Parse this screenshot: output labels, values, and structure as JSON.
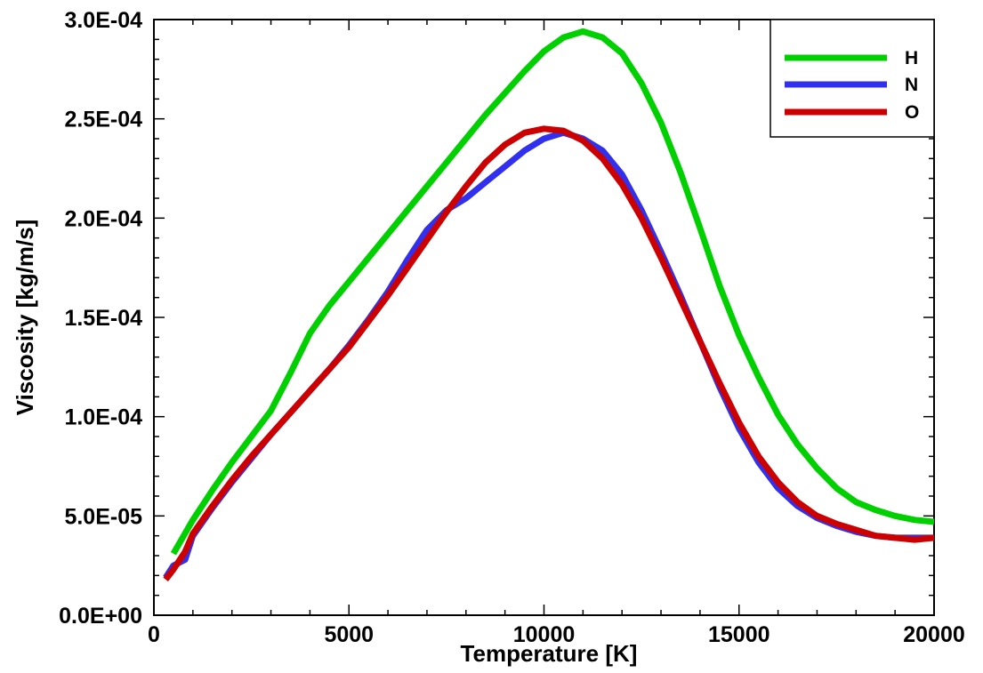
{
  "chart_data": {
    "type": "line",
    "title": "",
    "xlabel": "Temperature [K]",
    "ylabel": "Viscosity [kg/m/s]",
    "xlim": [
      0,
      20000
    ],
    "ylim": [
      0,
      0.0003
    ],
    "x_ticks": [
      0,
      5000,
      10000,
      15000,
      20000
    ],
    "x_tick_labels": [
      "0",
      "5000",
      "10000",
      "15000",
      "20000"
    ],
    "y_ticks": [
      0,
      5e-05,
      0.0001,
      0.00015,
      0.0002,
      0.00025,
      0.0003
    ],
    "y_tick_labels": [
      "0.0E+00",
      "5.0E-05",
      "1.0E-04",
      "1.5E-04",
      "2.0E-04",
      "2.5E-04",
      "3.0E-04"
    ],
    "grid": false,
    "legend_position": "top-right",
    "series": [
      {
        "name": "H",
        "color": "#00d000",
        "x": [
          500,
          1000,
          1500,
          2000,
          2500,
          3000,
          3500,
          4000,
          4500,
          5000,
          5500,
          6000,
          6500,
          7000,
          7500,
          8000,
          8500,
          9000,
          9500,
          10000,
          10500,
          11000,
          11500,
          12000,
          12500,
          13000,
          13500,
          14000,
          14500,
          15000,
          15500,
          16000,
          16500,
          17000,
          17500,
          18000,
          18500,
          19000,
          19500,
          20000
        ],
        "y": [
          3.1e-05,
          4.8e-05,
          6.3e-05,
          7.7e-05,
          9e-05,
          0.000103,
          0.000122,
          0.000142,
          0.000156,
          0.000168,
          0.00018,
          0.000192,
          0.000204,
          0.000216,
          0.000228,
          0.00024,
          0.000252,
          0.000263,
          0.000274,
          0.000284,
          0.000291,
          0.000294,
          0.000291,
          0.000283,
          0.000268,
          0.000248,
          0.000223,
          0.000195,
          0.000166,
          0.000141,
          0.00012,
          0.000101,
          8.6e-05,
          7.4e-05,
          6.4e-05,
          5.7e-05,
          5.3e-05,
          5e-05,
          4.8e-05,
          4.7e-05
        ]
      },
      {
        "name": "N",
        "color": "#3030ee",
        "x": [
          300,
          500,
          800,
          1000,
          1500,
          2000,
          2500,
          3000,
          3500,
          4000,
          4500,
          5000,
          5500,
          6000,
          6500,
          7000,
          7500,
          8000,
          8500,
          9000,
          9500,
          10000,
          10500,
          11000,
          11500,
          12000,
          12500,
          13000,
          13500,
          14000,
          14500,
          15000,
          15500,
          16000,
          16500,
          17000,
          17500,
          18000,
          18500,
          19000,
          19500,
          20000
        ],
        "y": [
          1.9e-05,
          2.5e-05,
          2.8e-05,
          4e-05,
          5.4e-05,
          6.7e-05,
          7.9e-05,
          9.1e-05,
          0.000102,
          0.000113,
          0.000124,
          0.000136,
          0.000149,
          0.000163,
          0.000179,
          0.000194,
          0.000204,
          0.00021,
          0.000218,
          0.000226,
          0.000234,
          0.00024,
          0.000243,
          0.00024,
          0.000234,
          0.000222,
          0.000204,
          0.000183,
          0.000161,
          0.000138,
          0.000115,
          9.4e-05,
          7.7e-05,
          6.4e-05,
          5.5e-05,
          4.9e-05,
          4.5e-05,
          4.2e-05,
          4e-05,
          3.9e-05,
          3.9e-05,
          3.9e-05
        ]
      },
      {
        "name": "O",
        "color": "#cc0000",
        "x": [
          300,
          500,
          800,
          1000,
          1500,
          2000,
          2500,
          3000,
          3500,
          4000,
          4500,
          5000,
          5500,
          6000,
          6500,
          7000,
          7500,
          8000,
          8500,
          9000,
          9500,
          10000,
          10500,
          11000,
          11500,
          12000,
          12500,
          13000,
          13500,
          14000,
          14500,
          15000,
          15500,
          16000,
          16500,
          17000,
          17500,
          18000,
          18500,
          19000,
          19500,
          20000
        ],
        "y": [
          1.8e-05,
          2.3e-05,
          3.2e-05,
          4.1e-05,
          5.5e-05,
          6.8e-05,
          8e-05,
          9.1e-05,
          0.000102,
          0.000113,
          0.000124,
          0.000135,
          0.000148,
          0.000161,
          0.000175,
          0.000189,
          0.000203,
          0.000216,
          0.000228,
          0.000237,
          0.000243,
          0.000245,
          0.000244,
          0.000239,
          0.00023,
          0.000217,
          0.0002,
          0.00018,
          0.000159,
          0.000138,
          0.000117,
          9.7e-05,
          8e-05,
          6.7e-05,
          5.7e-05,
          5e-05,
          4.6e-05,
          4.3e-05,
          4e-05,
          3.9e-05,
          3.8e-05,
          3.9e-05
        ]
      }
    ]
  }
}
